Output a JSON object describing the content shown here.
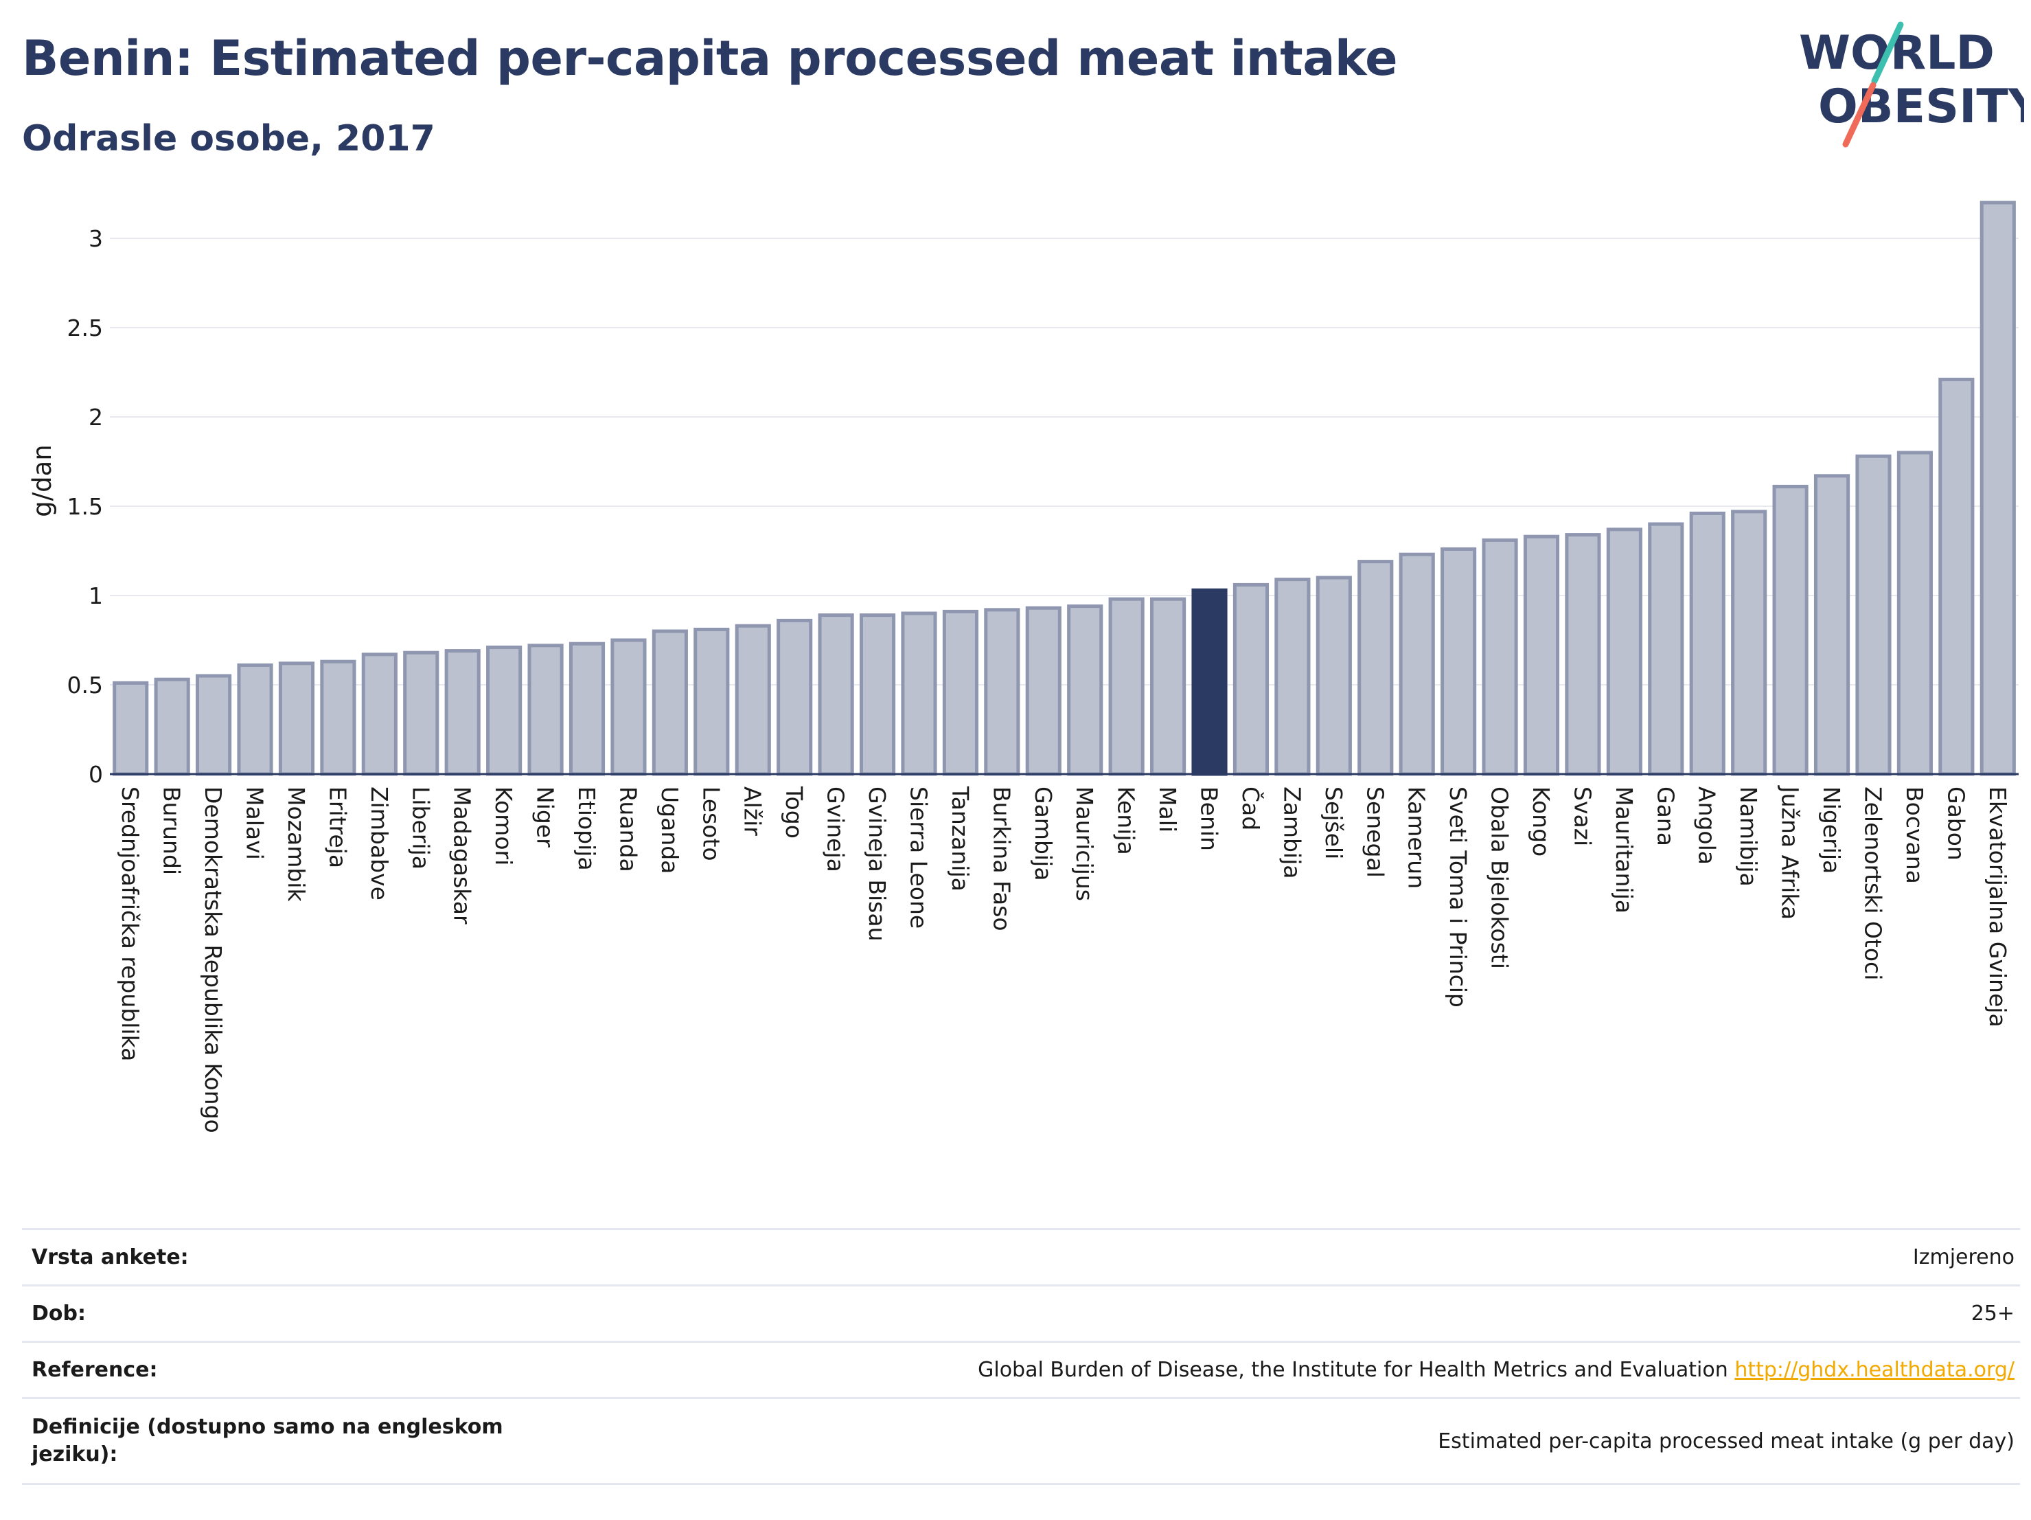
{
  "header": {
    "title": "Benin: Estimated per-capita processed meat intake",
    "subtitle": "Odrasle osobe, 2017"
  },
  "logo": {
    "line1": "WORLD",
    "line2": "OBESITY",
    "text_color": "#2b3a63",
    "slash_colors": [
      "#3dbfb0",
      "#f06a5a"
    ]
  },
  "colors": {
    "bar_fill": "#bcc1cf",
    "bar_stroke": "#8e96b0",
    "highlight": "#2b3a63",
    "grid": "#e8e9ee"
  },
  "chart_data": {
    "type": "bar",
    "ylabel": "g/dan",
    "ylim": [
      0,
      3.25
    ],
    "yticks": [
      0,
      0.5,
      1,
      1.5,
      2,
      2.5,
      3
    ],
    "ytick_labels": [
      "0",
      "0.5",
      "1",
      "1.5",
      "2",
      "2.5",
      "3"
    ],
    "grid": true,
    "highlight": "Benin",
    "categories": [
      "Srednjoafrička republika",
      "Burundi",
      "Demokratska Republika Kongo",
      "Malavi",
      "Mozambik",
      "Eritreja",
      "Zimbabve",
      "Liberija",
      "Madagaskar",
      "Komori",
      "Niger",
      "Etiopija",
      "Ruanda",
      "Uganda",
      "Lesoto",
      "Alžir",
      "Togo",
      "Gvineja",
      "Gvineja Bisau",
      "Sierra Leone",
      "Tanzanija",
      "Burkina Faso",
      "Gambija",
      "Mauricijus",
      "Kenija",
      "Mali",
      "Benin",
      "Čad",
      "Zambija",
      "Sejšeli",
      "Senegal",
      "Kamerun",
      "Sveti Toma i Princip",
      "Obala Bjelokosti",
      "Kongo",
      "Svazi",
      "Mauritanija",
      "Gana",
      "Angola",
      "Namibija",
      "Južna Afrika",
      "Nigerija",
      "Zelenortski Otoci",
      "Bocvana",
      "Gabon",
      "Ekvatorijalna Gvineja"
    ],
    "values": [
      0.51,
      0.53,
      0.55,
      0.61,
      0.62,
      0.63,
      0.67,
      0.68,
      0.69,
      0.71,
      0.72,
      0.73,
      0.75,
      0.8,
      0.81,
      0.83,
      0.86,
      0.89,
      0.89,
      0.9,
      0.91,
      0.92,
      0.93,
      0.94,
      0.98,
      0.98,
      1.03,
      1.06,
      1.09,
      1.1,
      1.19,
      1.23,
      1.26,
      1.31,
      1.33,
      1.34,
      1.37,
      1.4,
      1.46,
      1.47,
      1.61,
      1.67,
      1.78,
      1.8,
      2.21,
      3.2
    ]
  },
  "info": {
    "rows": [
      {
        "label": "Vrsta ankete:",
        "value": "Izmjereno"
      },
      {
        "label": "Dob:",
        "value": "25+"
      },
      {
        "label": "Reference:",
        "value": "Global Burden of Disease, the Institute for Health Metrics and Evaluation",
        "link": "http://ghdx.healthdata.org/"
      },
      {
        "label": "Definicije (dostupno samo na engleskom jeziku):",
        "value": "Estimated per-capita processed meat intake (g per day)"
      }
    ]
  }
}
